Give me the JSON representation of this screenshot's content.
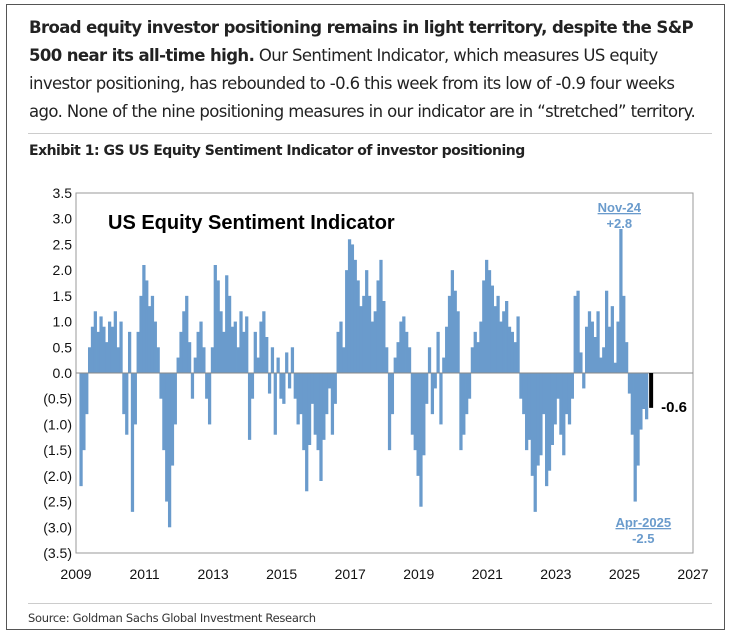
{
  "intro": {
    "bold": "Broad equity investor positioning remains in light territory, despite the S&P 500 near its all-time high.",
    "rest": " Our Sentiment Indicator, which measures US equity investor positioning, has rebounded to -0.6 this week from its low of -0.9 four weeks ago. None of the nine positioning measures in our indicator are in “stretched” territory."
  },
  "exhibit_title": "Exhibit 1: GS US Equity Sentiment Indicator of investor positioning",
  "source": "Source: Goldman Sachs Global Investment Research",
  "colors": {
    "bar": "#6a9bcc",
    "latest": "#000000",
    "annotation": "#6a9bcc"
  },
  "chart_data": {
    "type": "bar",
    "title": "US Equity Sentiment Indicator",
    "xlabel": "",
    "ylabel": "",
    "xlim": [
      2009,
      2027
    ],
    "ylim": [
      -3.5,
      3.5
    ],
    "x_ticks": [
      "2009",
      "2011",
      "2013",
      "2015",
      "2017",
      "2019",
      "2021",
      "2023",
      "2025",
      "2027"
    ],
    "y_ticks": [
      {
        "v": 3.5,
        "label": "3.5"
      },
      {
        "v": 3.0,
        "label": "3.0"
      },
      {
        "v": 2.5,
        "label": "2.5"
      },
      {
        "v": 2.0,
        "label": "2.0"
      },
      {
        "v": 1.5,
        "label": "1.5"
      },
      {
        "v": 1.0,
        "label": "1.0"
      },
      {
        "v": 0.5,
        "label": "0.5"
      },
      {
        "v": 0.0,
        "label": "0.0"
      },
      {
        "v": -0.5,
        "label": "(0.5)"
      },
      {
        "v": -1.0,
        "label": "(1.0)"
      },
      {
        "v": -1.5,
        "label": "(1.5)"
      },
      {
        "v": -2.0,
        "label": "(2.0)"
      },
      {
        "v": -2.5,
        "label": "(2.5)"
      },
      {
        "v": -3.0,
        "label": "(3.0)"
      },
      {
        "v": -3.5,
        "label": "(3.5)"
      }
    ],
    "start": 2009.1,
    "step_years": 0.08333,
    "values": [
      -2.2,
      -1.5,
      -0.8,
      0.5,
      0.9,
      1.2,
      0.8,
      1.1,
      0.9,
      0.6,
      1.0,
      0.9,
      1.2,
      0.5,
      1.0,
      -0.8,
      -1.2,
      0.8,
      -2.7,
      -1.0,
      0.8,
      1.5,
      2.1,
      1.8,
      1.3,
      1.5,
      1.0,
      0.5,
      -0.5,
      -1.5,
      -2.5,
      -3.0,
      -1.8,
      -1.0,
      0.3,
      0.8,
      1.2,
      1.5,
      0.6,
      -0.5,
      0.3,
      0.8,
      1.0,
      0.5,
      -0.5,
      -1.0,
      0.5,
      2.1,
      1.8,
      1.2,
      0.8,
      1.9,
      1.5,
      0.9,
      1.0,
      0.5,
      1.2,
      0.8,
      1.1,
      -1.3,
      -0.5,
      0.8,
      0.3,
      1.0,
      1.2,
      0.7,
      -0.4,
      0.5,
      -1.2,
      0.3,
      -0.5,
      -0.6,
      0.4,
      -0.3,
      0.5,
      -0.5,
      -1.0,
      -0.8,
      -1.5,
      -2.3,
      -1.4,
      -0.6,
      -1.2,
      -1.5,
      -2.1,
      -1.3,
      -0.8,
      -0.3,
      -1.2,
      -0.6,
      0.8,
      1.0,
      0.5,
      2.0,
      2.6,
      2.5,
      2.2,
      1.8,
      1.3,
      1.5,
      2.0,
      1.5,
      1.0,
      1.2,
      1.8,
      2.2,
      1.4,
      0.5,
      -1.5,
      -0.8,
      0.3,
      0.6,
      1.0,
      1.1,
      0.8,
      0.5,
      -1.2,
      -1.5,
      -2.0,
      -2.6,
      -1.6,
      -0.6,
      0.5,
      -0.8,
      -0.3,
      0.8,
      -1.0,
      0.3,
      0.9,
      1.5,
      2.0,
      1.6,
      1.2,
      -1.5,
      -1.2,
      -0.8,
      -0.5,
      0.5,
      0.8,
      0.6,
      1.0,
      1.8,
      2.2,
      2.0,
      1.7,
      1.3,
      1.5,
      1.0,
      1.2,
      1.4,
      0.9,
      0.8,
      0.6,
      1.1,
      -0.5,
      -0.8,
      -1.5,
      -1.3,
      -2.0,
      -2.7,
      -1.8,
      -1.6,
      -0.8,
      -2.2,
      -1.9,
      -1.4,
      -1.0,
      -0.5,
      -1.2,
      -1.6,
      -0.8,
      -1.0,
      -0.5,
      1.5,
      1.6,
      0.4,
      -0.3,
      0.9,
      1.2,
      1.0,
      0.7,
      1.2,
      0.3,
      0.5,
      1.6,
      0.9,
      1.3,
      0.2,
      1.0,
      2.8,
      1.5,
      0.6,
      -0.4,
      -1.2,
      -2.5,
      -1.8,
      -1.1,
      -0.7,
      -0.9
    ],
    "latest": {
      "x": 2025.72,
      "value": -0.6,
      "label": "-0.6"
    },
    "annotations": [
      {
        "x": 2024.85,
        "title": "Nov-24",
        "value": "+2.8",
        "position": "top"
      },
      {
        "x": 2025.55,
        "title": "Apr-2025",
        "value": "-2.5",
        "position": "bottom"
      }
    ],
    "grid": false
  }
}
